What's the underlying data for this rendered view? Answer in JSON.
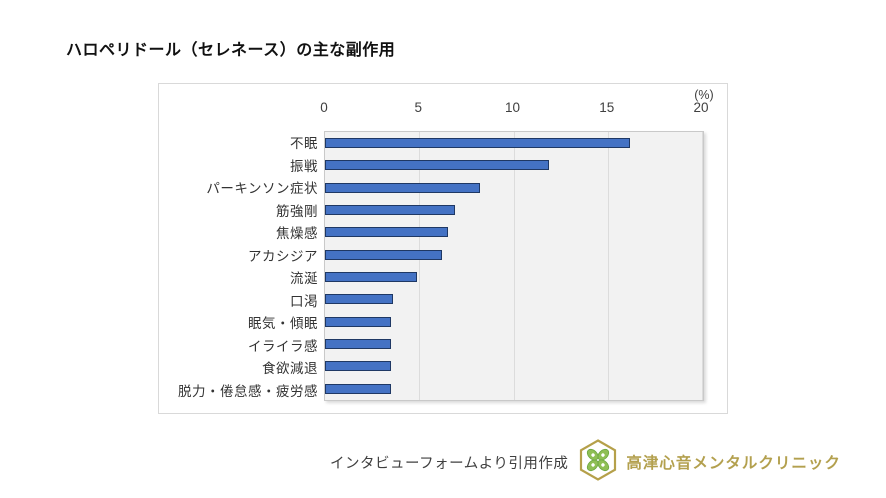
{
  "title": "ハロペリドール（セレネース）の主な副作用",
  "chart_data": {
    "type": "bar",
    "orientation": "horizontal",
    "title": "ハロペリドール（セレネース）の主な副作用",
    "unit_label": "(%)",
    "categories": [
      "不眠",
      "振戦",
      "パーキンソン症状",
      "筋強剛",
      "焦燥感",
      "アカシジア",
      "流涎",
      "口渇",
      "眠気・傾眠",
      "イライラ感",
      "食欲減退",
      "脱力・倦怠感・疲労感"
    ],
    "values": [
      16.2,
      11.9,
      8.2,
      6.9,
      6.5,
      6.2,
      4.9,
      3.6,
      3.5,
      3.5,
      3.5,
      3.5
    ],
    "x_ticks": [
      0,
      5,
      10,
      15,
      20
    ],
    "xlim": [
      0,
      20
    ],
    "grid": true,
    "legend": "none",
    "colors": {
      "bar_fill": "#4472c4",
      "bar_border": "#1f3864",
      "plot_bg": "#f2f2f2",
      "gridline": "#dcdcdc",
      "axis_text": "#404040"
    }
  },
  "footer": {
    "source_text": "インタビューフォームより引用作成",
    "clinic_name": "高津心音メンタルクリニック",
    "clinic_color": "#b3a04e",
    "logo_icon": "clover-hexagon-icon",
    "logo_colors": {
      "hexagon": "#b5a04a",
      "leaf": "#8fbf55",
      "leaf_edge": "#6aa63f"
    }
  }
}
